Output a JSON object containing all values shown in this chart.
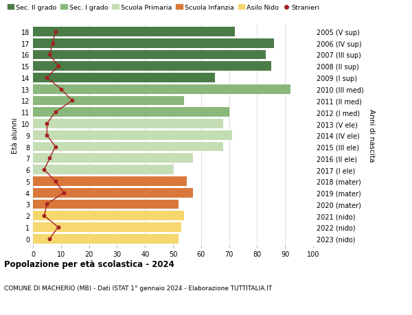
{
  "ages": [
    18,
    17,
    16,
    15,
    14,
    13,
    12,
    11,
    10,
    9,
    8,
    7,
    6,
    5,
    4,
    3,
    2,
    1,
    0
  ],
  "bar_values": [
    72,
    86,
    83,
    85,
    65,
    92,
    54,
    70,
    68,
    71,
    68,
    57,
    50,
    55,
    57,
    52,
    54,
    53,
    52
  ],
  "stranieri": [
    8,
    7,
    6,
    9,
    5,
    10,
    14,
    8,
    5,
    5,
    8,
    6,
    4,
    8,
    11,
    5,
    4,
    9,
    6
  ],
  "right_labels": [
    "2005 (V sup)",
    "2006 (IV sup)",
    "2007 (III sup)",
    "2008 (II sup)",
    "2009 (I sup)",
    "2010 (III med)",
    "2011 (II med)",
    "2012 (I med)",
    "2013 (V ele)",
    "2014 (IV ele)",
    "2015 (III ele)",
    "2016 (II ele)",
    "2017 (I ele)",
    "2018 (mater)",
    "2019 (mater)",
    "2020 (mater)",
    "2021 (nido)",
    "2022 (nido)",
    "2023 (nido)"
  ],
  "bar_colors": [
    "#4a7c47",
    "#4a7c47",
    "#4a7c47",
    "#4a7c47",
    "#4a7c47",
    "#8ab87a",
    "#8ab87a",
    "#8ab87a",
    "#c5ddb5",
    "#c5ddb5",
    "#c5ddb5",
    "#c5ddb5",
    "#c5ddb5",
    "#d9783a",
    "#d9783a",
    "#d9783a",
    "#f5d76e",
    "#f5d76e",
    "#f5d76e"
  ],
  "legend_labels": [
    "Sec. II grado",
    "Sec. I grado",
    "Scuola Primaria",
    "Scuola Infanzia",
    "Asilo Nido",
    "Stranieri"
  ],
  "legend_colors": [
    "#4a7c47",
    "#8ab87a",
    "#c5ddb5",
    "#d9783a",
    "#f5d76e",
    "#a52020"
  ],
  "title": "Popolazione per età scolastica - 2024",
  "subtitle": "COMUNE DI MACHERIO (MB) - Dati ISTAT 1° gennaio 2024 - Elaborazione TUTTITALIA.IT",
  "xlabel_left": "Età alunni",
  "xlabel_right": "Anni di nascita",
  "xlim": [
    0,
    100
  ],
  "xticks": [
    0,
    10,
    20,
    30,
    40,
    50,
    60,
    70,
    80,
    90,
    100
  ],
  "bar_height": 0.82,
  "background_color": "#ffffff",
  "grid_color": "#dddddd",
  "stranieri_color": "#a52020",
  "line_color": "#a52020"
}
